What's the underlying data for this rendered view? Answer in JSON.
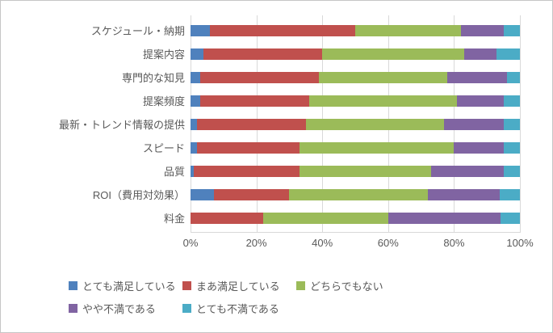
{
  "colors": {
    "background": "#ffffff",
    "border": "#c6c6c6",
    "axis_text": "#595959",
    "gridline": "#d9d9d9"
  },
  "chart_data": {
    "type": "bar",
    "orientation": "horizontal",
    "stacked": "100%",
    "title": "",
    "xlabel": "",
    "ylabel": "",
    "xlim": [
      0,
      100
    ],
    "gridlines": true,
    "legend_position": "bottom",
    "legend_rows": [
      3,
      2
    ],
    "categories": [
      "スケジュール・納期",
      "提案内容",
      "専門的な知見",
      "提案頻度",
      "最新・トレンド情報の提供",
      "スピード",
      "品質",
      "ROI（費用対効果）",
      "料金"
    ],
    "series": [
      {
        "name": "とても満足している",
        "color": "#4f81bd",
        "values": [
          6,
          4,
          3,
          3,
          2,
          2,
          1,
          7,
          0
        ]
      },
      {
        "name": "まあ満足している",
        "color": "#c0504d",
        "values": [
          44,
          36,
          36,
          33,
          33,
          31,
          32,
          23,
          22
        ]
      },
      {
        "name": "どちらでもない",
        "color": "#9bbb59",
        "values": [
          32,
          43,
          39,
          45,
          42,
          47,
          40,
          42,
          38
        ]
      },
      {
        "name": "やや不満である",
        "color": "#8064a2",
        "values": [
          13,
          10,
          18,
          14,
          18,
          15,
          22,
          22,
          34
        ]
      },
      {
        "name": "とても不満である",
        "color": "#4bacc6",
        "values": [
          5,
          7,
          4,
          5,
          5,
          5,
          5,
          6,
          6
        ]
      }
    ],
    "x_tick_values": [
      0,
      20,
      40,
      60,
      80,
      100
    ],
    "x_tick_labels": [
      "0%",
      "20%",
      "40%",
      "60%",
      "80%",
      "100%"
    ]
  }
}
